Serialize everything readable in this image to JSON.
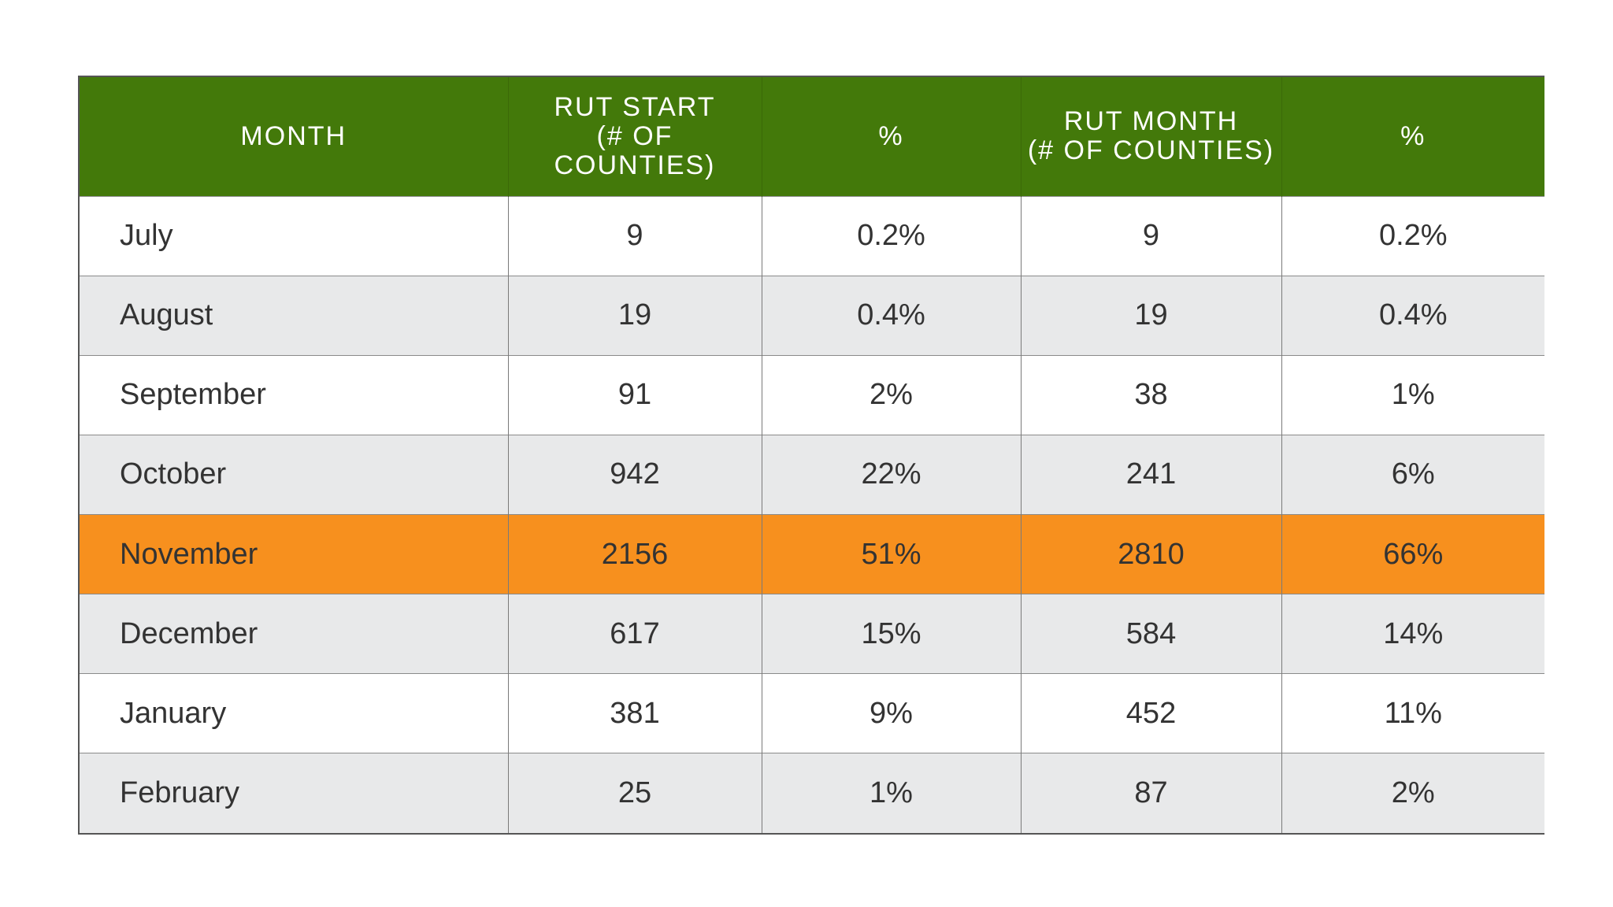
{
  "colors": {
    "header_bg": "#43790a",
    "row_white": "#ffffff",
    "row_gray": "#e8e9ea",
    "highlight": "#f7901e"
  },
  "table": {
    "headers": {
      "month": "MONTH",
      "rut_start_line1": "RUT START",
      "rut_start_line2": "(# OF COUNTIES)",
      "pct1": "%",
      "rut_month_line1": "RUT MONTH",
      "rut_month_line2": "(# OF COUNTIES)",
      "pct2": "%"
    },
    "rows": [
      {
        "month": "July",
        "rut_start": "9",
        "rut_start_pct": "0.2%",
        "rut_month": "9",
        "rut_month_pct": "0.2%",
        "highlight": false
      },
      {
        "month": "August",
        "rut_start": "19",
        "rut_start_pct": "0.4%",
        "rut_month": "19",
        "rut_month_pct": "0.4%",
        "highlight": false
      },
      {
        "month": "September",
        "rut_start": "91",
        "rut_start_pct": "2%",
        "rut_month": "38",
        "rut_month_pct": "1%",
        "highlight": false
      },
      {
        "month": "October",
        "rut_start": "942",
        "rut_start_pct": "22%",
        "rut_month": "241",
        "rut_month_pct": "6%",
        "highlight": false
      },
      {
        "month": "November",
        "rut_start": "2156",
        "rut_start_pct": "51%",
        "rut_month": "2810",
        "rut_month_pct": "66%",
        "highlight": true
      },
      {
        "month": "December",
        "rut_start": "617",
        "rut_start_pct": "15%",
        "rut_month": "584",
        "rut_month_pct": "14%",
        "highlight": false
      },
      {
        "month": "January",
        "rut_start": "381",
        "rut_start_pct": "9%",
        "rut_month": "452",
        "rut_month_pct": "11%",
        "highlight": false
      },
      {
        "month": "February",
        "rut_start": "25",
        "rut_start_pct": "1%",
        "rut_month": "87",
        "rut_month_pct": "2%",
        "highlight": false
      }
    ]
  }
}
